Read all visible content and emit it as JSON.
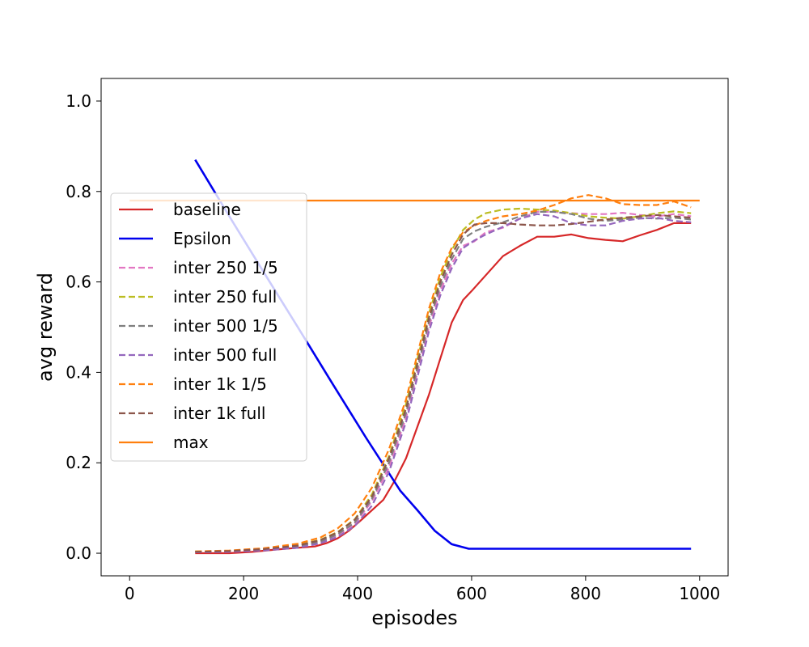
{
  "chart_data": {
    "type": "line",
    "title": "",
    "xlabel": "episodes",
    "ylabel": "avg reward",
    "xlim": [
      -50,
      1050
    ],
    "ylim": [
      -0.05,
      1.05
    ],
    "xticks": [
      0,
      200,
      400,
      600,
      800,
      1000
    ],
    "xtick_labels": [
      "0",
      "200",
      "400",
      "600",
      "800",
      "1000"
    ],
    "yticks": [
      0.0,
      0.2,
      0.4,
      0.6,
      0.8,
      1.0
    ],
    "ytick_labels": [
      "0.0",
      "0.2",
      "0.4",
      "0.6",
      "0.8",
      "1.0"
    ],
    "grid": false,
    "legend_position": "center-left",
    "series": [
      {
        "name": "baseline",
        "color": "#d62728",
        "dash": "solid",
        "x": [
          115,
          175,
          215,
          255,
          295,
          325,
          345,
          365,
          385,
          405,
          425,
          445,
          465,
          485,
          505,
          525,
          545,
          565,
          585,
          600,
          625,
          655,
          685,
          715,
          745,
          775,
          805,
          835,
          865,
          895,
          925,
          955,
          985
        ],
        "y": [
          0.0,
          0.0,
          0.003,
          0.008,
          0.012,
          0.015,
          0.022,
          0.033,
          0.05,
          0.072,
          0.095,
          0.118,
          0.16,
          0.21,
          0.28,
          0.35,
          0.43,
          0.51,
          0.56,
          0.58,
          0.615,
          0.657,
          0.68,
          0.7,
          0.7,
          0.705,
          0.697,
          0.693,
          0.69,
          0.703,
          0.715,
          0.73,
          0.73
        ]
      },
      {
        "name": "Epsilon",
        "color": "#0000ee",
        "dash": "solid",
        "x": [
          115,
          175,
          235,
          295,
          355,
          415,
          475,
          505,
          535,
          565,
          595,
          625,
          685,
          745,
          805,
          865,
          925,
          985
        ],
        "y": [
          0.87,
          0.745,
          0.622,
          0.5,
          0.377,
          0.255,
          0.138,
          0.095,
          0.05,
          0.02,
          0.01,
          0.01,
          0.01,
          0.01,
          0.01,
          0.01,
          0.01,
          0.01
        ],
        "width": 2.6
      },
      {
        "name": "inter 250 1/5",
        "color": "#e377c2",
        "dash": "dashed",
        "x": [
          115,
          175,
          235,
          295,
          335,
          365,
          395,
          425,
          455,
          485,
          505,
          525,
          545,
          565,
          585,
          605,
          625,
          655,
          685,
          715,
          745,
          775,
          805,
          835,
          865,
          895,
          925,
          955,
          985
        ],
        "y": [
          0.003,
          0.004,
          0.008,
          0.015,
          0.025,
          0.04,
          0.065,
          0.115,
          0.19,
          0.3,
          0.4,
          0.5,
          0.58,
          0.64,
          0.68,
          0.69,
          0.71,
          0.72,
          0.74,
          0.755,
          0.755,
          0.752,
          0.75,
          0.75,
          0.753,
          0.748,
          0.745,
          0.75,
          0.745
        ]
      },
      {
        "name": "inter 250 full",
        "color": "#bcbd22",
        "dash": "dashed",
        "x": [
          115,
          175,
          235,
          295,
          335,
          365,
          395,
          425,
          455,
          485,
          505,
          525,
          545,
          565,
          585,
          605,
          625,
          655,
          685,
          715,
          745,
          775,
          805,
          835,
          865,
          895,
          925,
          955,
          985
        ],
        "y": [
          0.004,
          0.005,
          0.009,
          0.018,
          0.03,
          0.047,
          0.075,
          0.13,
          0.215,
          0.33,
          0.43,
          0.53,
          0.61,
          0.67,
          0.715,
          0.738,
          0.752,
          0.76,
          0.762,
          0.76,
          0.758,
          0.752,
          0.745,
          0.742,
          0.74,
          0.745,
          0.752,
          0.756,
          0.752
        ]
      },
      {
        "name": "inter 500 1/5",
        "color": "#7f7f7f",
        "dash": "dashed",
        "x": [
          115,
          175,
          235,
          295,
          335,
          365,
          395,
          425,
          455,
          485,
          505,
          525,
          545,
          565,
          585,
          605,
          625,
          655,
          685,
          715,
          745,
          775,
          805,
          835,
          865,
          895,
          925,
          955,
          985
        ],
        "y": [
          0.003,
          0.004,
          0.008,
          0.015,
          0.026,
          0.042,
          0.068,
          0.12,
          0.2,
          0.31,
          0.41,
          0.51,
          0.59,
          0.65,
          0.695,
          0.712,
          0.722,
          0.732,
          0.745,
          0.755,
          0.755,
          0.75,
          0.74,
          0.735,
          0.738,
          0.742,
          0.74,
          0.742,
          0.738
        ]
      },
      {
        "name": "inter 500 full",
        "color": "#9467bd",
        "dash": "dashed",
        "x": [
          115,
          175,
          235,
          295,
          335,
          365,
          395,
          425,
          455,
          485,
          505,
          525,
          545,
          565,
          585,
          605,
          625,
          655,
          685,
          715,
          745,
          775,
          805,
          835,
          865,
          895,
          925,
          955,
          985
        ],
        "y": [
          0.002,
          0.003,
          0.006,
          0.012,
          0.022,
          0.036,
          0.06,
          0.105,
          0.18,
          0.29,
          0.39,
          0.49,
          0.57,
          0.63,
          0.675,
          0.692,
          0.705,
          0.722,
          0.74,
          0.75,
          0.745,
          0.73,
          0.725,
          0.725,
          0.735,
          0.74,
          0.742,
          0.735,
          0.732
        ]
      },
      {
        "name": "inter 1k 1/5",
        "color": "#ff7f0e",
        "dash": "dashed",
        "x": [
          115,
          175,
          235,
          295,
          335,
          365,
          395,
          425,
          455,
          485,
          505,
          525,
          545,
          565,
          585,
          605,
          625,
          655,
          685,
          715,
          745,
          775,
          805,
          835,
          865,
          895,
          925,
          955,
          985
        ],
        "y": [
          0.004,
          0.006,
          0.011,
          0.021,
          0.035,
          0.055,
          0.088,
          0.145,
          0.23,
          0.34,
          0.44,
          0.54,
          0.62,
          0.675,
          0.71,
          0.725,
          0.735,
          0.745,
          0.75,
          0.758,
          0.77,
          0.785,
          0.792,
          0.785,
          0.772,
          0.77,
          0.77,
          0.778,
          0.765
        ]
      },
      {
        "name": "inter 1k full",
        "color": "#8c564b",
        "dash": "dashed",
        "x": [
          115,
          175,
          235,
          295,
          335,
          365,
          395,
          425,
          455,
          485,
          505,
          525,
          545,
          565,
          585,
          605,
          625,
          655,
          685,
          715,
          745,
          775,
          805,
          835,
          865,
          895,
          925,
          955,
          985
        ],
        "y": [
          0.003,
          0.005,
          0.009,
          0.017,
          0.029,
          0.046,
          0.074,
          0.125,
          0.21,
          0.32,
          0.42,
          0.52,
          0.6,
          0.66,
          0.705,
          0.727,
          0.73,
          0.73,
          0.727,
          0.725,
          0.725,
          0.728,
          0.733,
          0.738,
          0.742,
          0.745,
          0.748,
          0.745,
          0.742
        ]
      },
      {
        "name": "max",
        "color": "#ff7f0e",
        "dash": "solid",
        "x": [
          0,
          1000
        ],
        "y": [
          0.78,
          0.78
        ]
      }
    ]
  }
}
